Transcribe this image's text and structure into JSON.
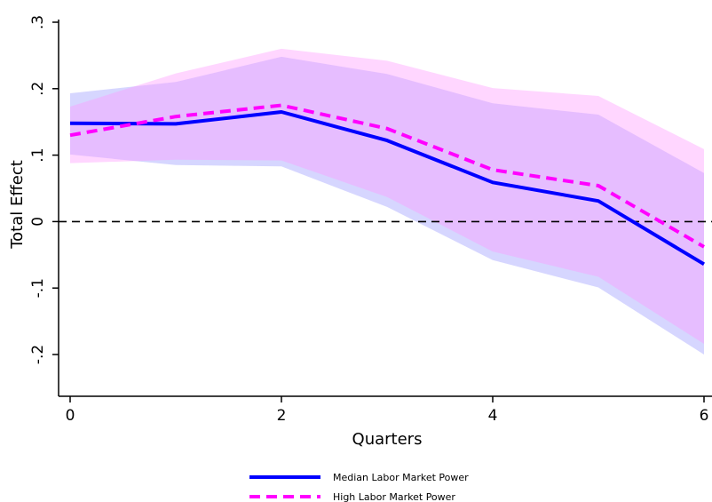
{
  "chart_data": {
    "type": "line",
    "title": "",
    "xlabel": "Quarters",
    "ylabel": "Total Effect",
    "xlim": [
      0,
      6
    ],
    "ylim": [
      -0.26,
      0.3
    ],
    "x_ticks": [
      0,
      2,
      4,
      6
    ],
    "x_tick_labels": [
      "0",
      "2",
      "4",
      "6"
    ],
    "y_ticks": [
      0.3,
      0.2,
      0.1,
      0,
      -0.1,
      -0.2
    ],
    "y_tick_labels": [
      ".3",
      ".2",
      ".1",
      "0",
      "-.1",
      "-.2"
    ],
    "reference_line": {
      "y": 0,
      "style": "dashed",
      "color": "#000000"
    },
    "grid": false,
    "legend_position": "bottom-center",
    "x": [
      0,
      1,
      2,
      3,
      4,
      5,
      6
    ],
    "series": [
      {
        "name": "Median Labor Market Power",
        "values": [
          0.148,
          0.147,
          0.165,
          0.122,
          0.059,
          0.031,
          -0.064
        ],
        "ci_upper": [
          0.193,
          0.21,
          0.248,
          0.222,
          0.178,
          0.161,
          0.073
        ],
        "ci_lower": [
          0.101,
          0.085,
          0.083,
          0.022,
          -0.058,
          -0.099,
          -0.2
        ],
        "color": "#0000ff",
        "band_color": "#9999ff",
        "dash": "solid"
      },
      {
        "name": "High Labor Market Power",
        "values": [
          0.13,
          0.158,
          0.175,
          0.14,
          0.078,
          0.054,
          -0.038
        ],
        "ci_upper": [
          0.173,
          0.223,
          0.26,
          0.242,
          0.201,
          0.189,
          0.109
        ],
        "ci_lower": [
          0.088,
          0.093,
          0.092,
          0.037,
          -0.045,
          -0.083,
          -0.184
        ],
        "color": "#ff00ff",
        "band_color": "#ff99ff",
        "dash": "dashed"
      }
    ]
  }
}
